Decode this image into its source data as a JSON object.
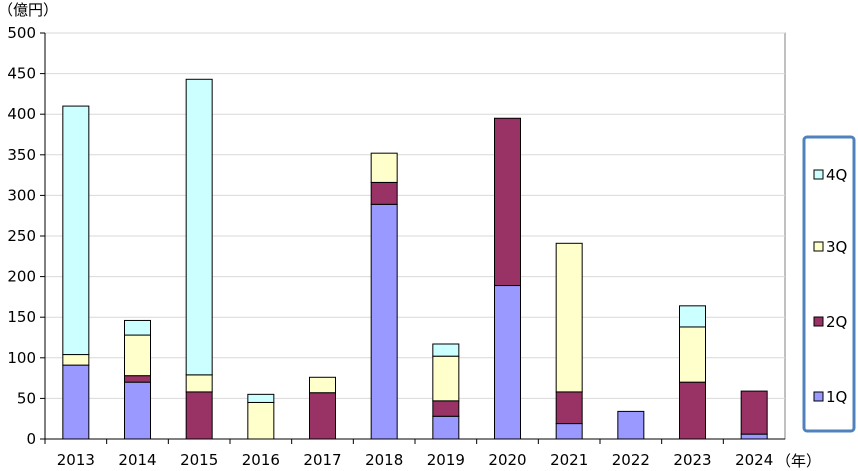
{
  "chart_data": {
    "type": "bar",
    "stacked": true,
    "unit_label": "（億円）",
    "x_unit_label": "（年）",
    "categories": [
      "2013",
      "2014",
      "2015",
      "2016",
      "2017",
      "2018",
      "2019",
      "2020",
      "2021",
      "2022",
      "2023",
      "2024"
    ],
    "series": [
      {
        "name": "1Q",
        "color": "#9999ff",
        "values": [
          91,
          70,
          0,
          0,
          0,
          289,
          28,
          189,
          19,
          34,
          0,
          6
        ]
      },
      {
        "name": "2Q",
        "color": "#993366",
        "values": [
          0,
          8,
          58,
          0,
          57,
          27,
          19,
          206,
          39,
          0,
          70,
          53
        ]
      },
      {
        "name": "3Q",
        "color": "#ffffcc",
        "values": [
          13,
          50,
          21,
          45,
          19,
          36,
          55,
          0,
          183,
          0,
          68,
          0
        ]
      },
      {
        "name": "4Q",
        "color": "#ccffff",
        "values": [
          306,
          18,
          364,
          10,
          0,
          0,
          15,
          0,
          0,
          0,
          26,
          0
        ]
      }
    ],
    "ylim": [
      0,
      500
    ],
    "yticks": [
      0,
      50,
      100,
      150,
      200,
      250,
      300,
      350,
      400,
      450,
      500
    ],
    "grid": true,
    "legend_position": "right",
    "legend_border_color": "#4f81bd"
  }
}
